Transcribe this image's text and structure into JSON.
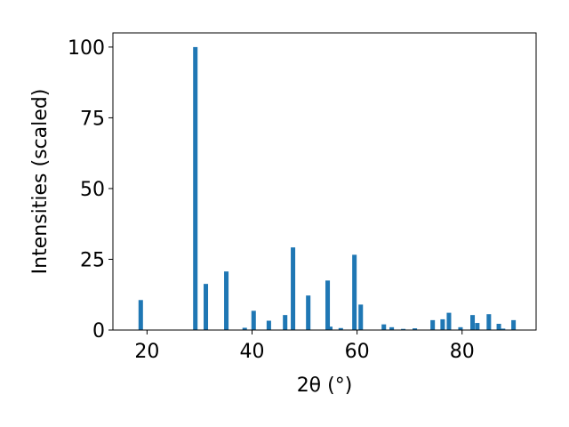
{
  "chart_data": {
    "type": "bar",
    "xlabel": "2θ (°)",
    "ylabel": "Intensities (scaled)",
    "color": "#1f77b4",
    "x": [
      18.8,
      29.2,
      31.2,
      35.1,
      38.6,
      40.3,
      43.2,
      46.3,
      47.8,
      50.7,
      54.4,
      54.9,
      56.9,
      59.5,
      60.7,
      65.1,
      66.6,
      68.8,
      71.0,
      74.4,
      76.3,
      77.5,
      79.7,
      82.0,
      82.9,
      85.1,
      87.0,
      87.8,
      89.8
    ],
    "values": [
      10.6,
      100,
      16.3,
      20.7,
      0.8,
      6.8,
      3.3,
      5.3,
      29.2,
      12.2,
      17.5,
      1.2,
      0.7,
      26.6,
      9.0,
      2.0,
      1.0,
      0.4,
      0.6,
      3.5,
      3.8,
      6.1,
      1.0,
      5.3,
      2.5,
      5.6,
      2.2,
      0.5,
      3.5
    ],
    "xlim": [
      13.5,
      94.1
    ],
    "ylim": [
      0,
      105
    ],
    "xticks": [
      20,
      40,
      60,
      80
    ],
    "yticks": [
      0,
      25,
      50,
      75,
      100
    ]
  }
}
